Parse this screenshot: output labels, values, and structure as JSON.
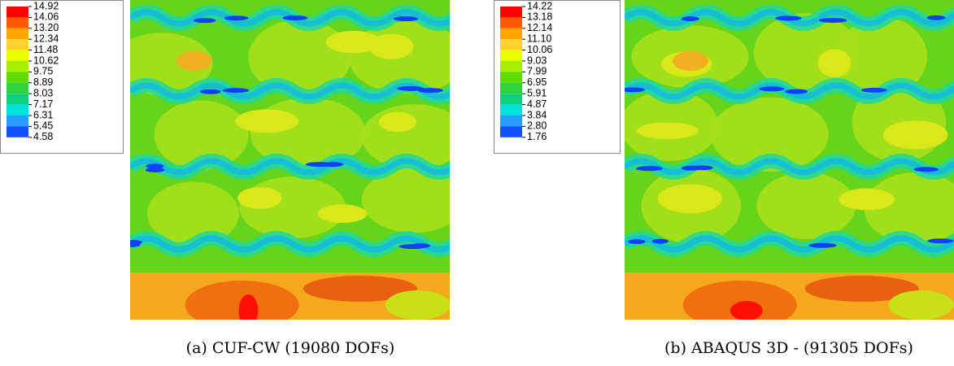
{
  "panels": [
    {
      "legend": [
        "14.92",
        "14.06",
        "13.20",
        "12.34",
        "11.48",
        "10.62",
        "9.75",
        "8.89",
        "8.03",
        "7.17",
        "6.31",
        "5.45",
        "4.58"
      ],
      "caption": "(a) CUF-CW (19080 DOFs)"
    },
    {
      "legend": [
        "14.22",
        "13.18",
        "12.14",
        "11.10",
        "10.06",
        "9.03",
        "7.99",
        "6.95",
        "5.91",
        "4.87",
        "3.84",
        "2.80",
        "1.76"
      ],
      "caption": "(b) ABAQUS 3D - (91305 DOFs)"
    }
  ]
}
